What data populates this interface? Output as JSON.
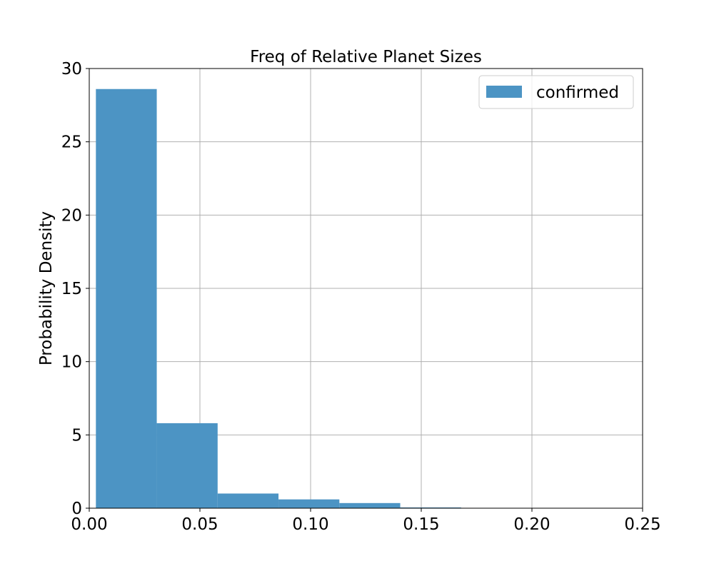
{
  "chart_data": {
    "type": "bar",
    "title": "Freq of Relative Planet Sizes",
    "xlabel": "",
    "ylabel": "Probability Density",
    "xlim": [
      0.0,
      0.25
    ],
    "ylim": [
      0,
      30
    ],
    "grid": true,
    "legend_position": "top-right",
    "x_ticks": [
      "0.00",
      "0.05",
      "0.10",
      "0.15",
      "0.20",
      "0.25"
    ],
    "y_ticks": [
      "0",
      "5",
      "10",
      "15",
      "20",
      "25",
      "30"
    ],
    "series": [
      {
        "name": "confirmed",
        "color": "#4c94c4",
        "bins": [
          {
            "x0": 0.003,
            "x1": 0.0305,
            "value": 28.6
          },
          {
            "x0": 0.0305,
            "x1": 0.058,
            "value": 5.8
          },
          {
            "x0": 0.058,
            "x1": 0.0855,
            "value": 1.0
          },
          {
            "x0": 0.0855,
            "x1": 0.113,
            "value": 0.6
          },
          {
            "x0": 0.113,
            "x1": 0.1405,
            "value": 0.35
          },
          {
            "x0": 0.1405,
            "x1": 0.168,
            "value": 0.05
          }
        ]
      }
    ]
  }
}
